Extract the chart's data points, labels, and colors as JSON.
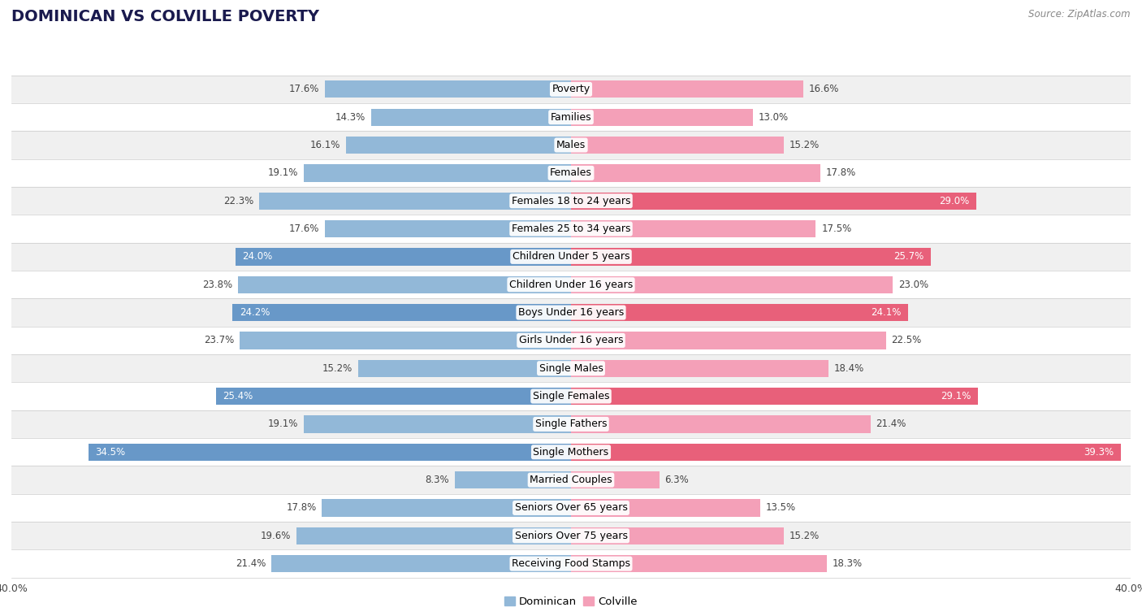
{
  "title": "DOMINICAN VS COLVILLE POVERTY",
  "source": "Source: ZipAtlas.com",
  "categories": [
    "Poverty",
    "Families",
    "Males",
    "Females",
    "Females 18 to 24 years",
    "Females 25 to 34 years",
    "Children Under 5 years",
    "Children Under 16 years",
    "Boys Under 16 years",
    "Girls Under 16 years",
    "Single Males",
    "Single Females",
    "Single Fathers",
    "Single Mothers",
    "Married Couples",
    "Seniors Over 65 years",
    "Seniors Over 75 years",
    "Receiving Food Stamps"
  ],
  "dominican": [
    17.6,
    14.3,
    16.1,
    19.1,
    22.3,
    17.6,
    24.0,
    23.8,
    24.2,
    23.7,
    15.2,
    25.4,
    19.1,
    34.5,
    8.3,
    17.8,
    19.6,
    21.4
  ],
  "colville": [
    16.6,
    13.0,
    15.2,
    17.8,
    29.0,
    17.5,
    25.7,
    23.0,
    24.1,
    22.5,
    18.4,
    29.1,
    21.4,
    39.3,
    6.3,
    13.5,
    15.2,
    18.3
  ],
  "dominican_color": "#92b8d8",
  "colville_color": "#f4a0b8",
  "dominican_highlight": "#6898c8",
  "colville_highlight": "#e8607a",
  "bg_odd": "#f0f0f0",
  "bg_even": "#ffffff",
  "xlim": 40.0,
  "bar_height": 0.62,
  "label_fontsize": 9.0,
  "value_fontsize": 8.5,
  "title_fontsize": 14,
  "axis_label_fontsize": 9,
  "dominican_highlight_rows": [
    6,
    8,
    11,
    13
  ],
  "colville_highlight_rows": [
    4,
    6,
    8,
    11,
    13
  ]
}
